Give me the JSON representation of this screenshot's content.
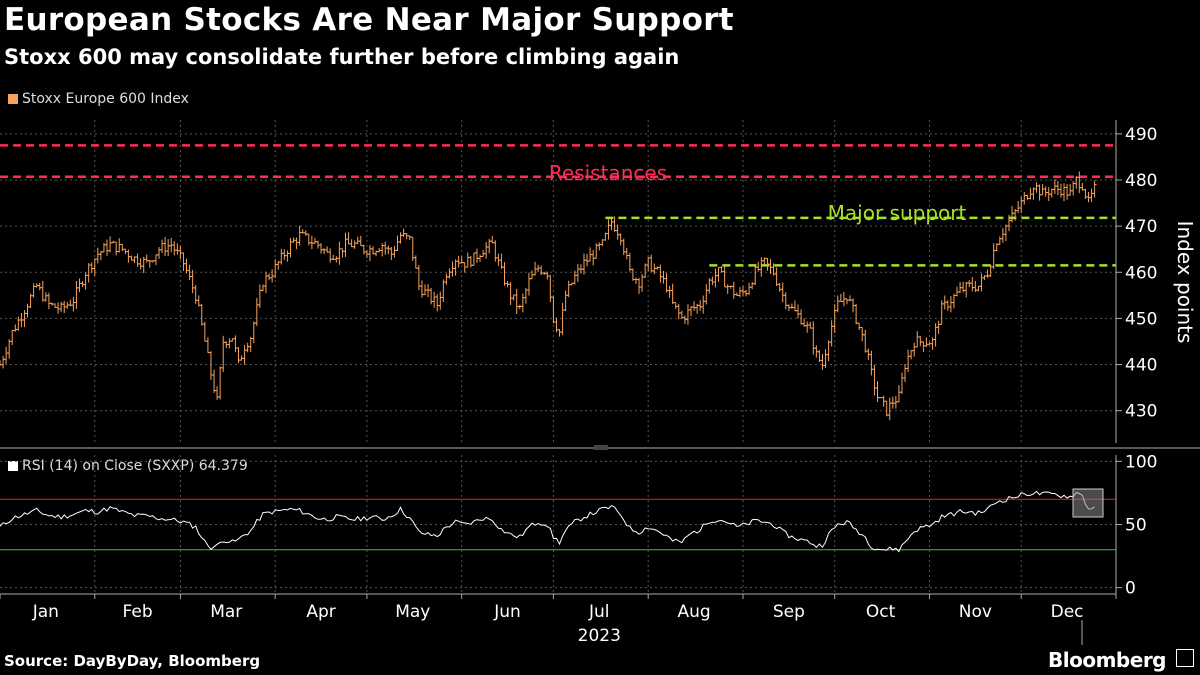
{
  "header": {
    "title": "European Stocks Are Near Major Support",
    "subtitle": "Stoxx 600 may consolidate further before climbing again"
  },
  "legend": {
    "main_label": "Stoxx Europe 600 Index",
    "rsi_label": "RSI (14)  on Close (SXXP) 64.379"
  },
  "footer": {
    "source": "Source: DayByDay, Bloomberg",
    "brand": "Bloomberg"
  },
  "colors": {
    "price": "#f7a35c",
    "resistance": "#ff2d55",
    "support": "#a4e22a",
    "rsi_line": "#ffffff",
    "rsi_upper": "#e8231e",
    "rsi_lower": "#3fbf3f",
    "grid": "#555555"
  },
  "chart_data": [
    {
      "type": "line",
      "name": "Stoxx Europe 600 Index",
      "ylabel": "Index points",
      "ylim": [
        423,
        493
      ],
      "yticks": [
        430,
        440,
        450,
        460,
        470,
        480,
        490
      ],
      "xlim": [
        0,
        365
      ],
      "x_ticks": [
        {
          "label": "Jan",
          "x": 15
        },
        {
          "label": "Feb",
          "x": 45
        },
        {
          "label": "Mar",
          "x": 74
        },
        {
          "label": "Apr",
          "x": 105
        },
        {
          "label": "May",
          "x": 135
        },
        {
          "label": "Jun",
          "x": 166
        },
        {
          "label": "Jul",
          "x": 196
        },
        {
          "label": "Aug",
          "x": 227
        },
        {
          "label": "Sep",
          "x": 258
        },
        {
          "label": "Oct",
          "x": 288
        },
        {
          "label": "Nov",
          "x": 319
        },
        {
          "label": "Dec",
          "x": 349
        }
      ],
      "year_label": "2023",
      "gridlines": true,
      "series_points": [
        [
          0,
          440
        ],
        [
          4,
          447
        ],
        [
          8,
          452
        ],
        [
          12,
          457
        ],
        [
          16,
          453
        ],
        [
          20,
          452
        ],
        [
          24,
          454
        ],
        [
          28,
          460
        ],
        [
          32,
          464
        ],
        [
          36,
          466
        ],
        [
          40,
          465
        ],
        [
          44,
          463
        ],
        [
          48,
          462
        ],
        [
          52,
          465
        ],
        [
          56,
          466
        ],
        [
          60,
          462
        ],
        [
          64,
          455
        ],
        [
          67,
          445
        ],
        [
          69,
          438
        ],
        [
          71,
          432
        ],
        [
          73,
          445
        ],
        [
          76,
          446
        ],
        [
          78,
          440
        ],
        [
          80,
          444
        ],
        [
          82,
          446
        ],
        [
          84,
          452
        ],
        [
          86,
          458
        ],
        [
          89,
          460
        ],
        [
          92,
          463
        ],
        [
          95,
          466
        ],
        [
          98,
          468
        ],
        [
          101,
          467
        ],
        [
          104,
          466
        ],
        [
          107,
          464
        ],
        [
          110,
          464
        ],
        [
          113,
          466
        ],
        [
          116,
          466
        ],
        [
          119,
          465
        ],
        [
          122,
          465
        ],
        [
          125,
          466
        ],
        [
          128,
          464
        ],
        [
          131,
          468
        ],
        [
          134,
          467
        ],
        [
          137,
          457
        ],
        [
          140,
          455
        ],
        [
          143,
          453
        ],
        [
          146,
          460
        ],
        [
          149,
          463
        ],
        [
          152,
          462
        ],
        [
          155,
          463
        ],
        [
          158,
          465
        ],
        [
          161,
          466
        ],
        [
          164,
          460
        ],
        [
          167,
          455
        ],
        [
          170,
          452
        ],
        [
          173,
          458
        ],
        [
          176,
          461
        ],
        [
          179,
          460
        ],
        [
          181,
          450
        ],
        [
          183,
          447
        ],
        [
          185,
          455
        ],
        [
          188,
          459
        ],
        [
          191,
          462
        ],
        [
          194,
          464
        ],
        [
          197,
          466
        ],
        [
          200,
          471
        ],
        [
          203,
          468
        ],
        [
          206,
          460
        ],
        [
          209,
          458
        ],
        [
          212,
          462
        ],
        [
          215,
          460
        ],
        [
          218,
          457
        ],
        [
          220,
          453
        ],
        [
          223,
          450
        ],
        [
          226,
          452
        ],
        [
          229,
          453
        ],
        [
          232,
          458
        ],
        [
          235,
          460
        ],
        [
          238,
          457
        ],
        [
          241,
          455
        ],
        [
          244,
          456
        ],
        [
          247,
          460
        ],
        [
          250,
          462
        ],
        [
          253,
          460
        ],
        [
          256,
          455
        ],
        [
          259,
          452
        ],
        [
          262,
          450
        ],
        [
          265,
          447
        ],
        [
          267,
          442
        ],
        [
          269,
          440
        ],
        [
          271,
          446
        ],
        [
          274,
          453
        ],
        [
          277,
          455
        ],
        [
          280,
          450
        ],
        [
          283,
          444
        ],
        [
          285,
          438
        ],
        [
          287,
          433
        ],
        [
          290,
          430
        ],
        [
          292,
          432
        ],
        [
          294,
          433
        ],
        [
          296,
          440
        ],
        [
          299,
          445
        ],
        [
          302,
          445
        ],
        [
          305,
          445
        ],
        [
          308,
          452
        ],
        [
          311,
          454
        ],
        [
          314,
          456
        ],
        [
          317,
          457
        ],
        [
          320,
          457
        ],
        [
          323,
          460
        ],
        [
          326,
          467
        ],
        [
          329,
          470
        ],
        [
          332,
          473
        ],
        [
          335,
          476
        ],
        [
          338,
          479
        ],
        [
          341,
          477
        ],
        [
          344,
          478
        ],
        [
          347,
          478
        ],
        [
          350,
          477
        ],
        [
          352,
          480
        ],
        [
          354,
          479
        ],
        [
          356,
          475
        ],
        [
          358,
          478
        ]
      ],
      "annotations": [
        {
          "label": "Resistances",
          "color": "resistance"
        },
        {
          "label": "Major support",
          "color": "support"
        }
      ],
      "reference_lines": [
        {
          "kind": "resistance",
          "y": 487.5,
          "x_from": 0,
          "x_to": 365
        },
        {
          "kind": "resistance",
          "y": 480.7,
          "x_from": 0,
          "x_to": 365
        },
        {
          "kind": "support",
          "y": 471.8,
          "x_from": 198,
          "x_to": 365
        },
        {
          "kind": "support",
          "y": 461.5,
          "x_from": 232,
          "x_to": 365
        }
      ]
    },
    {
      "type": "line",
      "name": "RSI (14) on Close (SXXP)",
      "last_value": 64.379,
      "ylim": [
        -5,
        105
      ],
      "yticks": [
        0,
        50,
        100
      ],
      "upper_band": 70,
      "lower_band": 30,
      "series_points": [
        [
          0,
          48
        ],
        [
          4,
          55
        ],
        [
          8,
          58
        ],
        [
          12,
          61
        ],
        [
          16,
          57
        ],
        [
          20,
          56
        ],
        [
          24,
          58
        ],
        [
          28,
          61
        ],
        [
          32,
          60
        ],
        [
          36,
          63
        ],
        [
          40,
          60
        ],
        [
          44,
          57
        ],
        [
          48,
          57
        ],
        [
          52,
          55
        ],
        [
          56,
          54
        ],
        [
          60,
          52
        ],
        [
          64,
          48
        ],
        [
          67,
          36
        ],
        [
          69,
          32
        ],
        [
          71,
          33
        ],
        [
          73,
          38
        ],
        [
          76,
          36
        ],
        [
          78,
          38
        ],
        [
          80,
          42
        ],
        [
          82,
          45
        ],
        [
          84,
          52
        ],
        [
          86,
          58
        ],
        [
          89,
          60
        ],
        [
          92,
          61
        ],
        [
          95,
          62
        ],
        [
          98,
          61
        ],
        [
          101,
          58
        ],
        [
          104,
          55
        ],
        [
          107,
          54
        ],
        [
          110,
          56
        ],
        [
          113,
          55
        ],
        [
          116,
          54
        ],
        [
          119,
          55
        ],
        [
          122,
          56
        ],
        [
          125,
          54
        ],
        [
          128,
          57
        ],
        [
          131,
          62
        ],
        [
          134,
          55
        ],
        [
          137,
          44
        ],
        [
          140,
          42
        ],
        [
          143,
          41
        ],
        [
          146,
          48
        ],
        [
          149,
          52
        ],
        [
          152,
          50
        ],
        [
          155,
          52
        ],
        [
          158,
          55
        ],
        [
          161,
          54
        ],
        [
          164,
          46
        ],
        [
          167,
          42
        ],
        [
          170,
          40
        ],
        [
          173,
          48
        ],
        [
          176,
          52
        ],
        [
          179,
          50
        ],
        [
          181,
          40
        ],
        [
          183,
          36
        ],
        [
          185,
          45
        ],
        [
          188,
          52
        ],
        [
          191,
          56
        ],
        [
          194,
          59
        ],
        [
          197,
          62
        ],
        [
          200,
          64
        ],
        [
          203,
          58
        ],
        [
          206,
          47
        ],
        [
          209,
          44
        ],
        [
          212,
          48
        ],
        [
          215,
          45
        ],
        [
          218,
          41
        ],
        [
          220,
          37
        ],
        [
          223,
          36
        ],
        [
          226,
          43
        ],
        [
          229,
          46
        ],
        [
          232,
          53
        ],
        [
          235,
          54
        ],
        [
          238,
          52
        ],
        [
          241,
          48
        ],
        [
          244,
          50
        ],
        [
          247,
          53
        ],
        [
          250,
          52
        ],
        [
          253,
          50
        ],
        [
          256,
          44
        ],
        [
          259,
          40
        ],
        [
          262,
          38
        ],
        [
          265,
          36
        ],
        [
          267,
          33
        ],
        [
          269,
          34
        ],
        [
          271,
          42
        ],
        [
          274,
          50
        ],
        [
          277,
          52
        ],
        [
          280,
          46
        ],
        [
          283,
          40
        ],
        [
          285,
          33
        ],
        [
          287,
          31
        ],
        [
          290,
          30
        ],
        [
          292,
          31
        ],
        [
          294,
          30
        ],
        [
          296,
          36
        ],
        [
          299,
          45
        ],
        [
          302,
          48
        ],
        [
          305,
          50
        ],
        [
          308,
          56
        ],
        [
          311,
          58
        ],
        [
          314,
          60
        ],
        [
          317,
          60
        ],
        [
          320,
          59
        ],
        [
          323,
          62
        ],
        [
          326,
          68
        ],
        [
          329,
          70
        ],
        [
          332,
          72
        ],
        [
          335,
          74
        ],
        [
          338,
          75
        ],
        [
          341,
          74
        ],
        [
          344,
          74
        ],
        [
          347,
          73
        ],
        [
          350,
          72
        ],
        [
          352,
          75
        ],
        [
          354,
          73
        ],
        [
          356,
          62
        ],
        [
          358,
          64
        ]
      ]
    }
  ]
}
